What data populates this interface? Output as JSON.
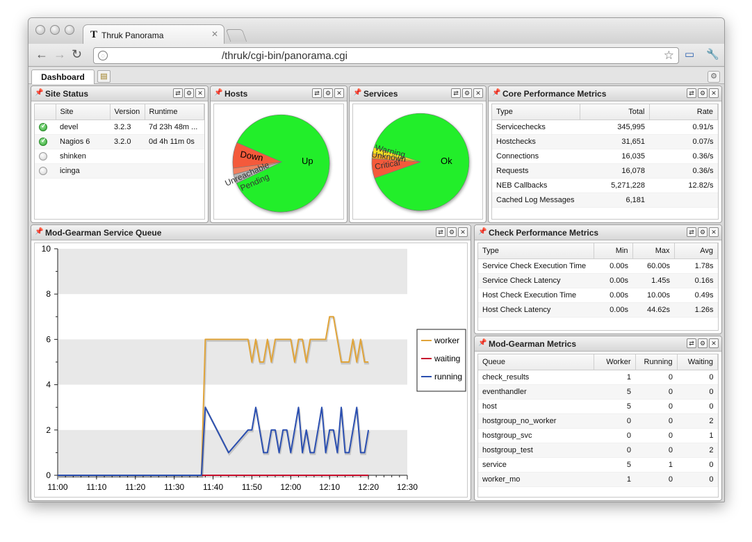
{
  "browser": {
    "tab_title": "Thruk Panorama",
    "url": "/thruk/cgi-bin/panorama.cgi",
    "tab_icon": "T"
  },
  "app": {
    "dashboard_tab": "Dashboard"
  },
  "site_status": {
    "title": "Site Status",
    "columns": [
      "Site",
      "Version",
      "Runtime"
    ],
    "rows": [
      {
        "status": "ok",
        "site": "devel",
        "version": "3.2.3",
        "runtime": "7d 23h 48m ..."
      },
      {
        "status": "ok",
        "site": "Nagios 6",
        "version": "3.2.0",
        "runtime": "0d 4h 11m 0s"
      },
      {
        "status": "off",
        "site": "shinken",
        "version": "",
        "runtime": ""
      },
      {
        "status": "off",
        "site": "icinga",
        "version": "",
        "runtime": ""
      }
    ]
  },
  "hosts": {
    "title": "Hosts",
    "labels": {
      "up": "Up",
      "down": "Down",
      "unreachable": "Unreachable",
      "pending": "Pending"
    }
  },
  "services": {
    "title": "Services",
    "labels": {
      "ok": "Ok",
      "warning": "Warning",
      "unknown": "Unknown",
      "critical": "Critical"
    }
  },
  "core": {
    "title": "Core Performance Metrics",
    "columns": [
      "Type",
      "Total",
      "Rate"
    ],
    "rows": [
      [
        "Servicechecks",
        "345,995",
        "0.91/s"
      ],
      [
        "Hostchecks",
        "31,651",
        "0.07/s"
      ],
      [
        "Connections",
        "16,035",
        "0.36/s"
      ],
      [
        "Requests",
        "16,078",
        "0.36/s"
      ],
      [
        "NEB Callbacks",
        "5,271,228",
        "12.82/s"
      ],
      [
        "Cached Log Messages",
        "6,181",
        ""
      ]
    ]
  },
  "check_perf": {
    "title": "Check Performance Metrics",
    "columns": [
      "Type",
      "Min",
      "Max",
      "Avg"
    ],
    "rows": [
      [
        "Service Check Execution Time",
        "0.00s",
        "60.00s",
        "1.78s"
      ],
      [
        "Service Check Latency",
        "0.00s",
        "1.45s",
        "0.16s"
      ],
      [
        "Host Check Execution Time",
        "0.00s",
        "10.00s",
        "0.49s"
      ],
      [
        "Host Check Latency",
        "0.00s",
        "44.62s",
        "1.26s"
      ]
    ]
  },
  "gearman": {
    "title": "Mod-Gearman Metrics",
    "columns": [
      "Queue",
      "Worker",
      "Running",
      "Waiting"
    ],
    "rows": [
      [
        "check_results",
        "1",
        "0",
        "0"
      ],
      [
        "eventhandler",
        "5",
        "0",
        "0"
      ],
      [
        "host",
        "5",
        "0",
        "0"
      ],
      [
        "hostgroup_no_worker",
        "0",
        "0",
        "2"
      ],
      [
        "hostgroup_svc",
        "0",
        "0",
        "1"
      ],
      [
        "hostgroup_test",
        "0",
        "0",
        "2"
      ],
      [
        "service",
        "5",
        "1",
        "0"
      ],
      [
        "worker_mo",
        "1",
        "0",
        "0"
      ]
    ]
  },
  "queue_panel": {
    "title": "Mod-Gearman Service Queue"
  },
  "chart_data": {
    "type": "line",
    "title": "",
    "xlabel": "",
    "ylabel": "",
    "ylim": [
      0,
      10
    ],
    "yticks": [
      0,
      2,
      4,
      6,
      8,
      10
    ],
    "xlim": [
      "11:00",
      "12:30"
    ],
    "xticks": [
      "11:00",
      "11:10",
      "11:20",
      "11:30",
      "11:40",
      "11:50",
      "12:00",
      "12:10",
      "12:20",
      "12:30"
    ],
    "grid": true,
    "legend": "right",
    "x": [
      "11:00",
      "11:37",
      "11:38",
      "11:44",
      "11:49",
      "11:50",
      "11:51",
      "11:52",
      "11:53",
      "11:54",
      "11:55",
      "11:56",
      "11:57",
      "11:58",
      "11:59",
      "12:00",
      "12:01",
      "12:02",
      "12:03",
      "12:04",
      "12:05",
      "12:06",
      "12:07",
      "12:08",
      "12:09",
      "12:10",
      "12:11",
      "12:12",
      "12:13",
      "12:14",
      "12:15",
      "12:16",
      "12:17",
      "12:18",
      "12:19",
      "12:20"
    ],
    "series": [
      {
        "name": "worker",
        "color": "#e0a43a",
        "values": [
          0,
          0,
          6,
          6,
          6,
          5,
          6,
          5,
          5,
          6,
          5,
          6,
          6,
          6,
          6,
          6,
          5,
          6,
          6,
          5,
          6,
          6,
          6,
          6,
          6,
          7,
          7,
          6,
          5,
          5,
          5,
          6,
          5,
          6,
          5,
          5
        ]
      },
      {
        "name": "waiting",
        "color": "#c8102e",
        "values": [
          0,
          0,
          0,
          0,
          0,
          0,
          0,
          0,
          0,
          0,
          0,
          0,
          0,
          0,
          0,
          0,
          0,
          0,
          0,
          0,
          0,
          0,
          0,
          0,
          0,
          0,
          0,
          0,
          0,
          0,
          0,
          0,
          0,
          0,
          0,
          0
        ]
      },
      {
        "name": "running",
        "color": "#2b4fb0",
        "values": [
          0,
          0,
          3,
          1,
          2,
          2,
          3,
          2,
          1,
          1,
          2,
          2,
          1,
          2,
          2,
          1,
          2,
          3,
          1,
          2,
          1,
          1,
          2,
          3,
          1,
          2,
          2,
          1,
          3,
          1,
          1,
          2,
          3,
          1,
          1,
          2
        ]
      }
    ]
  }
}
